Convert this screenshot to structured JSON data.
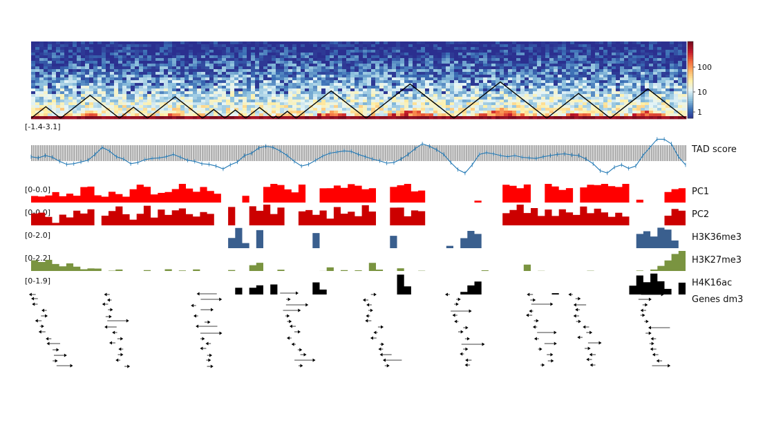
{
  "chart_data": {
    "type": "genome_tracks",
    "colorbar": {
      "scale": "log",
      "ticks": [
        "100",
        "10",
        "1"
      ],
      "colormap": [
        "#2b2f8f",
        "#3b6fb5",
        "#8cc0dd",
        "#e6f5f7",
        "#fff0a8",
        "#fdb568",
        "#f26a3c",
        "#c2182a",
        "#7a0a1e"
      ]
    },
    "tads": [
      {
        "start": 0.0,
        "end": 0.045
      },
      {
        "start": 0.045,
        "end": 0.135
      },
      {
        "start": 0.135,
        "end": 0.178
      },
      {
        "start": 0.178,
        "end": 0.262
      },
      {
        "start": 0.262,
        "end": 0.296
      },
      {
        "start": 0.296,
        "end": 0.328
      },
      {
        "start": 0.328,
        "end": 0.37
      },
      {
        "start": 0.37,
        "end": 0.378
      },
      {
        "start": 0.378,
        "end": 0.405
      },
      {
        "start": 0.405,
        "end": 0.512
      },
      {
        "start": 0.512,
        "end": 0.646
      },
      {
        "start": 0.646,
        "end": 0.788
      },
      {
        "start": 0.788,
        "end": 0.885
      },
      {
        "start": 0.885,
        "end": 1.0
      },
      {
        "start": 1.0,
        "end": 0.0
      }
    ],
    "tracks": [
      {
        "title": "TAD score",
        "range": "[-1.4-3.1]",
        "color": "#1f77b4",
        "values": [
          0.1,
          0.0,
          0.2,
          0.05,
          -0.3,
          -0.55,
          -0.5,
          -0.35,
          -0.2,
          0.3,
          0.9,
          0.6,
          0.1,
          -0.1,
          -0.5,
          -0.4,
          -0.15,
          -0.05,
          0.0,
          0.1,
          0.3,
          0.05,
          -0.2,
          -0.3,
          -0.5,
          -0.55,
          -0.7,
          -0.95,
          -0.6,
          -0.35,
          0.2,
          0.4,
          0.85,
          1.0,
          0.9,
          0.6,
          0.2,
          -0.3,
          -0.7,
          -0.55,
          -0.2,
          0.15,
          0.4,
          0.5,
          0.6,
          0.55,
          0.3,
          0.1,
          -0.1,
          -0.25,
          -0.45,
          -0.4,
          -0.1,
          0.3,
          0.8,
          1.2,
          1.0,
          0.7,
          0.3,
          -0.4,
          -1.0,
          -1.3,
          -0.6,
          0.3,
          0.45,
          0.35,
          0.2,
          0.1,
          0.2,
          0.05,
          0.0,
          -0.05,
          0.1,
          0.2,
          0.3,
          0.35,
          0.25,
          0.2,
          -0.1,
          -0.5,
          -1.1,
          -1.3,
          -0.8,
          -0.6,
          -0.9,
          -0.7,
          0.2,
          0.9,
          1.6,
          1.6,
          1.2,
          0.1,
          -0.6
        ]
      },
      {
        "title": "PC1",
        "range": "[0-0.0]",
        "color": "#ff0000",
        "values": [
          0.3,
          0.35,
          0.3,
          0.6,
          0.4,
          0.5,
          0.3,
          0.8,
          0.9,
          0.3,
          0.4,
          0.6,
          0.5,
          0.3,
          0.7,
          0.9,
          0.8,
          0.4,
          0.5,
          0.6,
          0.7,
          1.0,
          0.7,
          0.5,
          0.9,
          0.6,
          0.4,
          0.0,
          0.0,
          0.0,
          0.3,
          0.0,
          0.0,
          0.9,
          0.95,
          1.0,
          0.7,
          0.5,
          0.95,
          0.0,
          0.0,
          0.85,
          0.8,
          0.9,
          0.7,
          0.95,
          0.9,
          0.7,
          0.8,
          0.0,
          0.0,
          0.9,
          0.85,
          1.0,
          0.6,
          0.7,
          0.0,
          0.0,
          0.0,
          0.0,
          0.0,
          0.0,
          0.0,
          0.1,
          0.0,
          0.0,
          0.0,
          0.9,
          0.85,
          0.85,
          0.9,
          0.0,
          0.0,
          1.0,
          0.9,
          0.7,
          0.8,
          0.0,
          0.9,
          0.95,
          0.9,
          1.0,
          0.95,
          0.9,
          1.0,
          0.0,
          0.1,
          0.0,
          0.0,
          0.0,
          0.6,
          0.7,
          0.7
        ]
      },
      {
        "title": "PC2",
        "range": "[0-0.0]",
        "color": "#cc0000",
        "values": [
          0.5,
          0.7,
          0.4,
          0.1,
          0.6,
          0.4,
          0.8,
          0.5,
          0.7,
          0.0,
          0.4,
          0.6,
          0.9,
          0.5,
          0.3,
          0.6,
          1.0,
          0.4,
          0.8,
          0.5,
          0.7,
          0.9,
          0.6,
          0.5,
          0.7,
          0.6,
          0.0,
          0.0,
          0.8,
          0.0,
          0.0,
          0.9,
          0.7,
          1.0,
          0.5,
          0.9,
          0.0,
          0.0,
          0.6,
          0.8,
          0.5,
          0.7,
          0.4,
          0.8,
          0.6,
          0.7,
          0.5,
          0.9,
          0.7,
          0.0,
          0.0,
          0.8,
          0.9,
          0.4,
          0.7,
          0.6,
          0.0,
          0.0,
          0.0,
          0.0,
          0.0,
          0.0,
          0.0,
          0.0,
          0.0,
          0.0,
          0.0,
          0.5,
          0.8,
          1.0,
          0.6,
          0.9,
          0.5,
          0.7,
          0.4,
          0.8,
          0.6,
          0.5,
          0.9,
          0.6,
          0.8,
          0.7,
          0.5,
          0.6,
          0.4,
          0.0,
          0.0,
          0.0,
          0.0,
          0.0,
          0.5,
          0.8,
          0.7
        ]
      },
      {
        "title": "H3K36me3",
        "range": "[0-2.0]",
        "color": "#3a5f8e",
        "values": [
          0,
          0,
          0,
          0,
          0,
          0,
          0,
          0,
          0,
          0,
          0,
          0,
          0,
          0,
          0,
          0,
          0,
          0,
          0,
          0,
          0,
          0,
          0,
          0,
          0,
          0,
          0,
          0.0,
          0.55,
          1.0,
          0.3,
          0,
          0.9,
          0,
          0,
          0,
          0,
          0,
          0,
          0,
          0.75,
          0,
          0,
          0,
          0,
          0,
          0,
          0,
          0,
          0,
          0,
          0.5,
          0,
          0,
          0,
          0,
          0,
          0,
          0,
          0.1,
          0,
          0.5,
          0.85,
          0.7,
          0,
          0,
          0,
          0,
          0,
          0,
          0,
          0,
          0,
          0,
          0.0,
          0,
          0,
          0,
          0,
          0,
          0,
          0,
          0,
          0,
          0,
          0.0,
          0.7,
          0.85,
          0.5,
          0.9,
          0.8,
          0.4,
          0
        ]
      },
      {
        "title": "H3K27me3",
        "range": "[0-2.2]",
        "color": "#7a9440",
        "values": [
          0.55,
          0.45,
          0.5,
          0.35,
          0.2,
          0.35,
          0.15,
          0.05,
          0.1,
          0.05,
          0.0,
          0.05,
          0.1,
          0.0,
          0.05,
          0.0,
          0.05,
          0.0,
          0.0,
          0.05,
          0.0,
          0.1,
          0.0,
          0.05,
          0.0,
          0.0,
          0.0,
          0.0,
          0.05,
          0.0,
          0.0,
          0.2,
          0.45,
          0.05,
          0.0,
          0.05,
          0.0,
          0.0,
          0.0,
          0.0,
          0.0,
          0.05,
          0.1,
          0.0,
          0.05,
          0.0,
          0.05,
          0.0,
          0.35,
          0.05,
          0.0,
          0.0,
          0.05,
          0.0,
          0.0,
          0.05,
          0.0,
          0.0,
          0.0,
          0.0,
          0.0,
          0.0,
          0.0,
          0.0,
          0.05,
          0.0,
          0.0,
          0.0,
          0.0,
          0.0,
          0.25,
          0.0,
          0.05,
          0.0,
          0.05,
          0.0,
          0.0,
          0.0,
          0.0,
          0.05,
          0.0,
          0.0,
          0.0,
          0.0,
          0.0,
          0.0,
          0.05,
          0.0,
          0.1,
          0.3,
          0.5,
          0.9,
          1.0
        ]
      },
      {
        "title": "H4K16ac",
        "range": "[0-1.9]",
        "color": "#000000",
        "values": [
          0,
          0,
          0,
          0,
          0,
          0,
          0,
          0,
          0,
          0,
          0,
          0,
          0,
          0,
          0,
          0,
          0,
          0,
          0,
          0,
          0,
          0,
          0,
          0,
          0,
          0,
          0,
          0,
          0,
          0.3,
          0.0,
          0.4,
          0.35,
          0,
          0.4,
          0,
          0,
          0,
          0,
          0,
          0.55,
          0.3,
          0,
          0,
          0,
          0,
          0,
          0,
          0,
          0,
          0,
          0,
          1.0,
          0.3,
          0,
          0,
          0,
          0,
          0,
          0,
          0,
          0.2,
          0.45,
          0.55,
          0,
          0,
          0,
          0,
          0,
          0,
          0,
          0,
          0,
          0,
          0.1,
          0,
          0,
          0,
          0,
          0,
          0,
          0,
          0,
          0,
          0,
          0.4,
          0.8,
          0.55,
          0.95,
          0.6,
          0.3,
          0.0,
          0.55
        ]
      },
      {
        "title": "Genes dm3"
      }
    ]
  }
}
